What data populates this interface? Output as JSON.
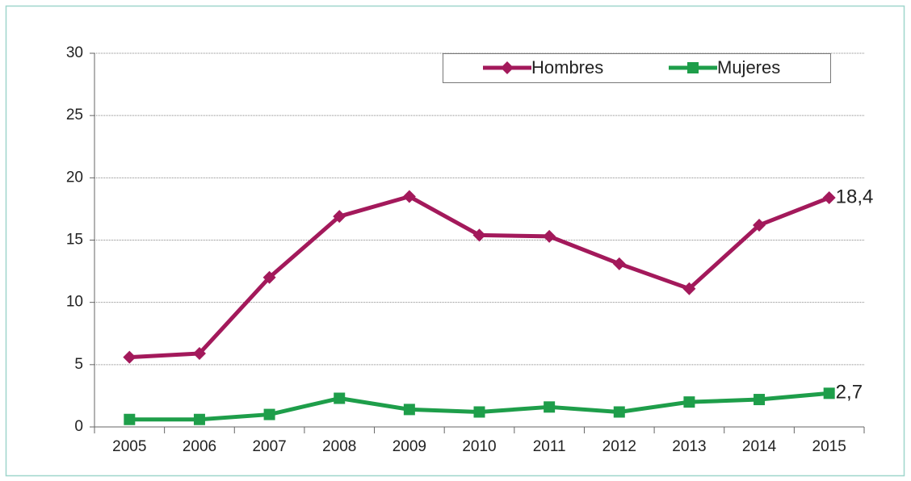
{
  "chart_data": {
    "type": "line",
    "categories": [
      "2005",
      "2006",
      "2007",
      "2008",
      "2009",
      "2010",
      "2011",
      "2012",
      "2013",
      "2014",
      "2015"
    ],
    "series": [
      {
        "name": "Hombres",
        "color": "#a3195b",
        "marker": "diamond",
        "values": [
          5.6,
          5.9,
          12.0,
          16.9,
          18.5,
          15.4,
          15.3,
          13.1,
          11.1,
          16.2,
          18.4
        ],
        "value_labels": [
          null,
          null,
          null,
          null,
          null,
          null,
          null,
          null,
          null,
          null,
          "18,4"
        ]
      },
      {
        "name": "Mujeres",
        "color": "#1e9e4a",
        "marker": "square",
        "values": [
          0.6,
          0.6,
          1.0,
          2.3,
          1.4,
          1.2,
          1.6,
          1.2,
          2.0,
          2.2,
          2.7
        ],
        "value_labels": [
          null,
          null,
          null,
          null,
          null,
          null,
          null,
          null,
          null,
          null,
          "2,7"
        ]
      }
    ],
    "ylim": [
      0,
      30
    ],
    "yticks": [
      0,
      5,
      10,
      15,
      20,
      25,
      30
    ],
    "grid": true,
    "legend": "top-right"
  }
}
